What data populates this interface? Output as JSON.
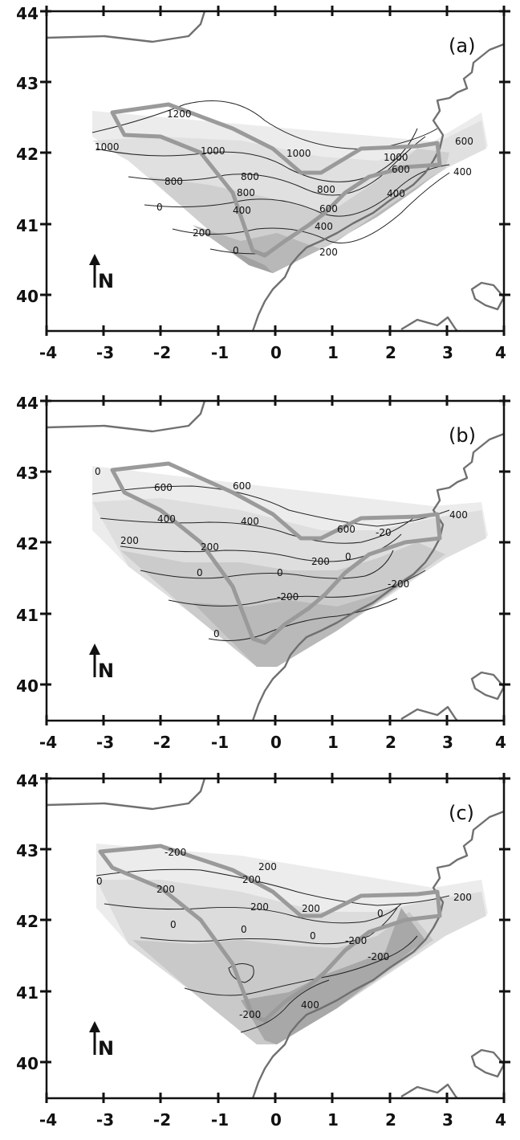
{
  "x_ticks": [
    "-4",
    "-3",
    "-2",
    "-1",
    "0",
    "1",
    "2",
    "3",
    "4"
  ],
  "y_ticks": [
    "44",
    "43",
    "42",
    "41",
    "40"
  ],
  "north_label": "N",
  "colors": {
    "frame": "#111111",
    "coast": "#707070",
    "boundary": "#9a9a9a",
    "shade_light": "#ececec",
    "shade_mid": "#d0d0d0",
    "shade_dark": "#9e9e9e"
  },
  "panels": [
    {
      "label": "(a)",
      "contour_labels": [
        "1200",
        "1000",
        "1000",
        "1000",
        "1000",
        "600",
        "800",
        "800",
        "800",
        "800",
        "600",
        "600",
        "400",
        "400",
        "400",
        "400",
        "200",
        "200",
        "0",
        "0"
      ]
    },
    {
      "label": "(b)",
      "contour_labels": [
        "0",
        "600",
        "600",
        "600",
        "400",
        "400",
        "200",
        "200",
        "0",
        "0",
        "0",
        "-20",
        "-200",
        "-200",
        "0",
        "200",
        "400"
      ]
    },
    {
      "label": "(c)",
      "contour_labels": [
        "-200",
        "200",
        "200",
        "0",
        "200",
        "0",
        "0",
        "200",
        "0",
        "-200",
        "0",
        "-200",
        "400",
        "-200",
        "200",
        "200"
      ]
    }
  ]
}
